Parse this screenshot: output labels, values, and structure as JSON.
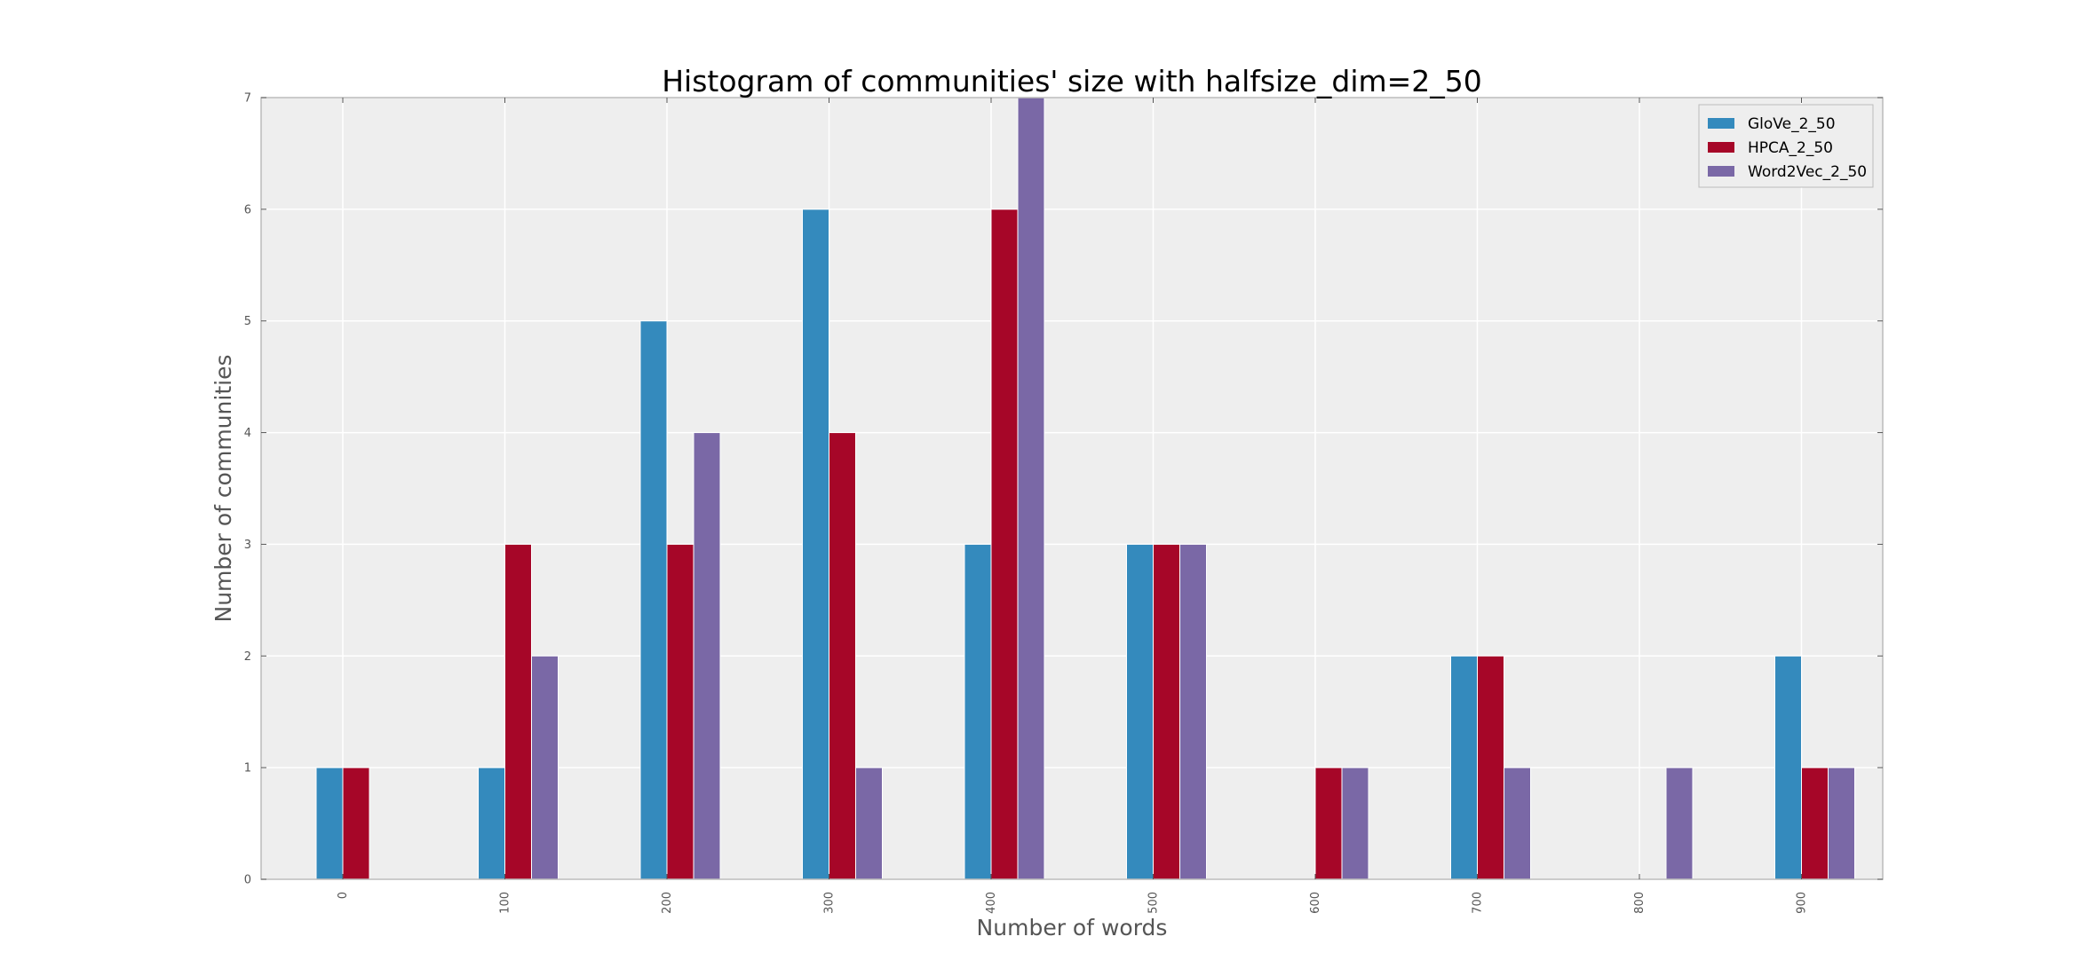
{
  "chart_data": {
    "type": "bar",
    "title": "Histogram of communities' size with halfsize_dim=2_50",
    "xlabel": "Number of words",
    "ylabel": "Number of communities",
    "categories": [
      "0",
      "100",
      "200",
      "300",
      "400",
      "500",
      "600",
      "700",
      "800",
      "900"
    ],
    "series": [
      {
        "name": "GloVe_2_50",
        "color": "#348abd",
        "values": [
          1,
          1,
          5,
          6,
          3,
          3,
          0,
          2,
          0,
          2
        ]
      },
      {
        "name": "HPCA_2_50",
        "color": "#a60628",
        "values": [
          1,
          3,
          3,
          4,
          6,
          3,
          1,
          2,
          0,
          1
        ]
      },
      {
        "name": "Word2Vec_2_50",
        "color": "#7a68a6",
        "values": [
          0,
          2,
          4,
          1,
          7,
          3,
          1,
          1,
          1,
          1
        ]
      }
    ],
    "ylim": [
      0,
      7
    ],
    "yticks": [
      "0",
      "1",
      "2",
      "3",
      "4",
      "5",
      "6",
      "7"
    ],
    "grid": true,
    "legend_position": "top-right",
    "plot_background": "#eeeeee",
    "grid_color": "#ffffff"
  }
}
